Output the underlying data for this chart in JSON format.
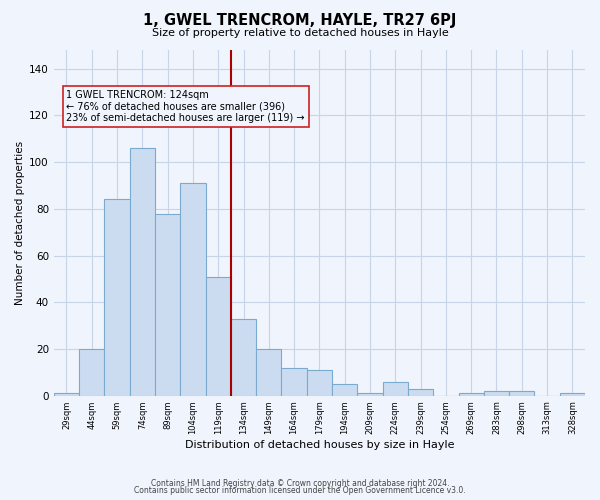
{
  "title": "1, GWEL TRENCROM, HAYLE, TR27 6PJ",
  "subtitle": "Size of property relative to detached houses in Hayle",
  "xlabel": "Distribution of detached houses by size in Hayle",
  "ylabel": "Number of detached properties",
  "categories": [
    "29sqm",
    "44sqm",
    "59sqm",
    "74sqm",
    "89sqm",
    "104sqm",
    "119sqm",
    "134sqm",
    "149sqm",
    "164sqm",
    "179sqm",
    "194sqm",
    "209sqm",
    "224sqm",
    "239sqm",
    "254sqm",
    "269sqm",
    "283sqm",
    "298sqm",
    "313sqm",
    "328sqm"
  ],
  "values": [
    1,
    20,
    84,
    106,
    78,
    91,
    51,
    33,
    20,
    12,
    11,
    5,
    1,
    6,
    3,
    0,
    1,
    2,
    2,
    0,
    1
  ],
  "bar_color": "#ccdcf0",
  "bar_edge_color": "#7aaad0",
  "marker_line_color": "#aa0000",
  "annotation_line1": "1 GWEL TRENCROM: 124sqm",
  "annotation_line2": "← 76% of detached houses are smaller (396)",
  "annotation_line3": "23% of semi-detached houses are larger (119) →",
  "annotation_box_edgecolor": "#cc2222",
  "ylim": [
    0,
    148
  ],
  "yticks": [
    0,
    20,
    40,
    60,
    80,
    100,
    120,
    140
  ],
  "footer_line1": "Contains HM Land Registry data © Crown copyright and database right 2024.",
  "footer_line2": "Contains public sector information licensed under the Open Government Licence v3.0.",
  "background_color": "#f0f4fc",
  "grid_color": "#c8d4e8",
  "marker_bar_index": 6
}
